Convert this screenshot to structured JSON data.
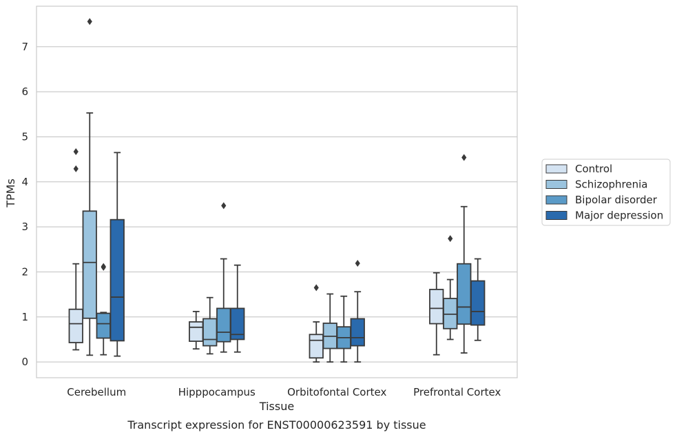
{
  "chart_data": {
    "type": "box",
    "xlabel": "Tissue",
    "ylabel": "TPMs",
    "caption": "Transcript expression for ENST00000623591 by tissue",
    "ylim": [
      -0.35,
      7.9
    ],
    "yticks": [
      0,
      1,
      2,
      3,
      4,
      5,
      6,
      7
    ],
    "grid": "horizontal",
    "legend_position": "right",
    "categories": [
      "Cerebellum",
      "Hipppocampus",
      "Orbitofontal Cortex",
      "Prefrontal Cortex"
    ],
    "series": [
      {
        "name": "Control",
        "color": "#d4e3f2",
        "boxes": [
          {
            "whislo": 0.27,
            "q1": 0.43,
            "med": 0.85,
            "q3": 1.17,
            "whishi": 2.18,
            "fliers": [
              4.67,
              4.29
            ]
          },
          {
            "whislo": 0.29,
            "q1": 0.46,
            "med": 0.77,
            "q3": 0.89,
            "whishi": 1.12,
            "fliers": []
          },
          {
            "whislo": 0.0,
            "q1": 0.09,
            "med": 0.48,
            "q3": 0.61,
            "whishi": 0.89,
            "fliers": [
              1.65
            ]
          },
          {
            "whislo": 0.16,
            "q1": 0.85,
            "med": 1.19,
            "q3": 1.61,
            "whishi": 1.98,
            "fliers": []
          }
        ]
      },
      {
        "name": "Schizophrenia",
        "color": "#9bc4df",
        "boxes": [
          {
            "whislo": 0.15,
            "q1": 0.97,
            "med": 2.21,
            "q3": 3.35,
            "whishi": 5.53,
            "fliers": [
              7.56
            ]
          },
          {
            "whislo": 0.18,
            "q1": 0.36,
            "med": 0.5,
            "q3": 0.96,
            "whishi": 1.43,
            "fliers": []
          },
          {
            "whislo": 0.0,
            "q1": 0.3,
            "med": 0.57,
            "q3": 0.86,
            "whishi": 1.51,
            "fliers": []
          },
          {
            "whislo": 0.5,
            "q1": 0.74,
            "med": 1.06,
            "q3": 1.41,
            "whishi": 1.83,
            "fliers": [
              2.74
            ]
          }
        ]
      },
      {
        "name": "Bipolar disorder",
        "color": "#5b9bc8",
        "boxes": [
          {
            "whislo": 0.16,
            "q1": 0.53,
            "med": 0.85,
            "q3": 1.08,
            "whishi": 1.1,
            "fliers": [
              2.12,
              2.1
            ]
          },
          {
            "whislo": 0.22,
            "q1": 0.45,
            "med": 0.66,
            "q3": 1.19,
            "whishi": 2.29,
            "fliers": [
              3.47
            ]
          },
          {
            "whislo": 0.0,
            "q1": 0.3,
            "med": 0.54,
            "q3": 0.78,
            "whishi": 1.46,
            "fliers": []
          },
          {
            "whislo": 0.2,
            "q1": 0.84,
            "med": 1.22,
            "q3": 2.18,
            "whishi": 3.45,
            "fliers": [
              4.54
            ]
          }
        ]
      },
      {
        "name": "Major depression",
        "color": "#2a6aad",
        "boxes": [
          {
            "whislo": 0.13,
            "q1": 0.47,
            "med": 1.44,
            "q3": 3.16,
            "whishi": 4.65,
            "fliers": []
          },
          {
            "whislo": 0.22,
            "q1": 0.5,
            "med": 0.61,
            "q3": 1.19,
            "whishi": 2.15,
            "fliers": []
          },
          {
            "whislo": 0.0,
            "q1": 0.36,
            "med": 0.54,
            "q3": 0.96,
            "whishi": 1.56,
            "fliers": [
              2.19
            ]
          },
          {
            "whislo": 0.48,
            "q1": 0.82,
            "med": 1.12,
            "q3": 1.8,
            "whishi": 2.29,
            "fliers": []
          }
        ]
      }
    ]
  }
}
